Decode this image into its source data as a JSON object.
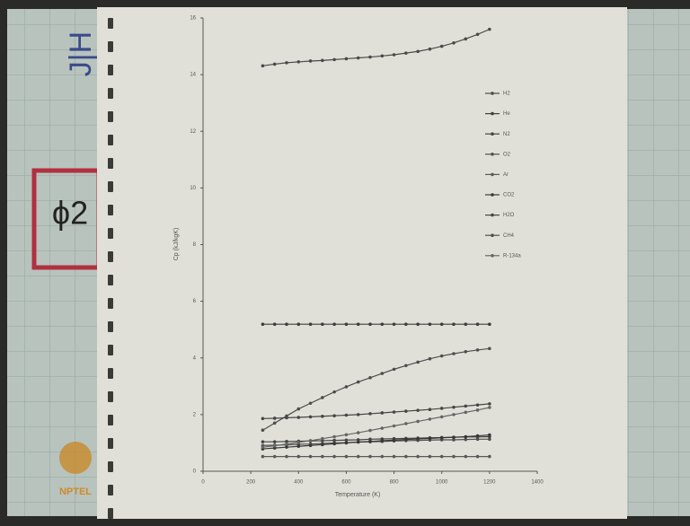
{
  "logo_text": "NPTEL",
  "board_notes": [
    "J|H",
    "ϕ2"
  ],
  "chart_data": {
    "type": "line",
    "x_label": "Temperature (K)",
    "y_label": "Cp (kJ/kgK)",
    "x": [
      250,
      300,
      350,
      400,
      450,
      500,
      550,
      600,
      650,
      700,
      750,
      800,
      850,
      900,
      950,
      1000,
      1050,
      1100,
      1150,
      1200
    ],
    "xlim": [
      0,
      1400
    ],
    "xticks": [
      0,
      200,
      400,
      600,
      800,
      1000,
      1200,
      1400
    ],
    "ylim": [
      0,
      16
    ],
    "yticks": [
      0,
      2,
      4,
      6,
      8,
      10,
      12,
      14,
      16
    ],
    "grid": false,
    "legend": "right",
    "series": [
      {
        "name": "H2",
        "color": "#4a4a4a",
        "values": [
          14.31,
          14.37,
          14.42,
          14.45,
          14.48,
          14.5,
          14.53,
          14.56,
          14.59,
          14.62,
          14.66,
          14.7,
          14.76,
          14.82,
          14.9,
          15.0,
          15.12,
          15.26,
          15.42,
          15.6
        ]
      },
      {
        "name": "He",
        "color": "#3e3e3e",
        "values": [
          5.19,
          5.19,
          5.19,
          5.19,
          5.19,
          5.19,
          5.19,
          5.19,
          5.19,
          5.19,
          5.19,
          5.19,
          5.19,
          5.19,
          5.19,
          5.19,
          5.19,
          5.19,
          5.19,
          5.19
        ]
      },
      {
        "name": "N2",
        "color": "#444444",
        "values": [
          1.04,
          1.04,
          1.05,
          1.06,
          1.07,
          1.08,
          1.09,
          1.1,
          1.11,
          1.13,
          1.14,
          1.15,
          1.16,
          1.17,
          1.18,
          1.19,
          1.2,
          1.21,
          1.21,
          1.22
        ]
      },
      {
        "name": "O2",
        "color": "#505050",
        "values": [
          0.91,
          0.92,
          0.93,
          0.95,
          0.96,
          0.98,
          1.0,
          1.01,
          1.03,
          1.04,
          1.05,
          1.07,
          1.08,
          1.09,
          1.1,
          1.11,
          1.11,
          1.12,
          1.13,
          1.13
        ]
      },
      {
        "name": "Ar",
        "color": "#5a5a5a",
        "values": [
          0.52,
          0.52,
          0.52,
          0.52,
          0.52,
          0.52,
          0.52,
          0.52,
          0.52,
          0.52,
          0.52,
          0.52,
          0.52,
          0.52,
          0.52,
          0.52,
          0.52,
          0.52,
          0.52,
          0.52
        ]
      },
      {
        "name": "CO2",
        "color": "#383838",
        "values": [
          0.79,
          0.82,
          0.85,
          0.88,
          0.91,
          0.94,
          0.97,
          1.0,
          1.03,
          1.05,
          1.08,
          1.1,
          1.12,
          1.14,
          1.16,
          1.18,
          1.2,
          1.22,
          1.25,
          1.28
        ]
      },
      {
        "name": "H2O",
        "color": "#464646",
        "values": [
          1.86,
          1.87,
          1.89,
          1.9,
          1.92,
          1.94,
          1.96,
          1.98,
          2.0,
          2.03,
          2.06,
          2.09,
          2.12,
          2.15,
          2.18,
          2.22,
          2.26,
          2.3,
          2.34,
          2.38
        ]
      },
      {
        "name": "CH4",
        "color": "#4e4e4e",
        "values": [
          1.45,
          1.7,
          1.95,
          2.2,
          2.4,
          2.6,
          2.8,
          2.98,
          3.15,
          3.3,
          3.45,
          3.6,
          3.73,
          3.85,
          3.97,
          4.07,
          4.15,
          4.22,
          4.28,
          4.33
        ]
      },
      {
        "name": "R-134a",
        "color": "#666666",
        "values": [
          0.85,
          0.9,
          0.96,
          1.02,
          1.08,
          1.15,
          1.22,
          1.29,
          1.36,
          1.44,
          1.52,
          1.6,
          1.68,
          1.76,
          1.84,
          1.92,
          2.0,
          2.08,
          2.16,
          2.25
        ]
      }
    ]
  }
}
